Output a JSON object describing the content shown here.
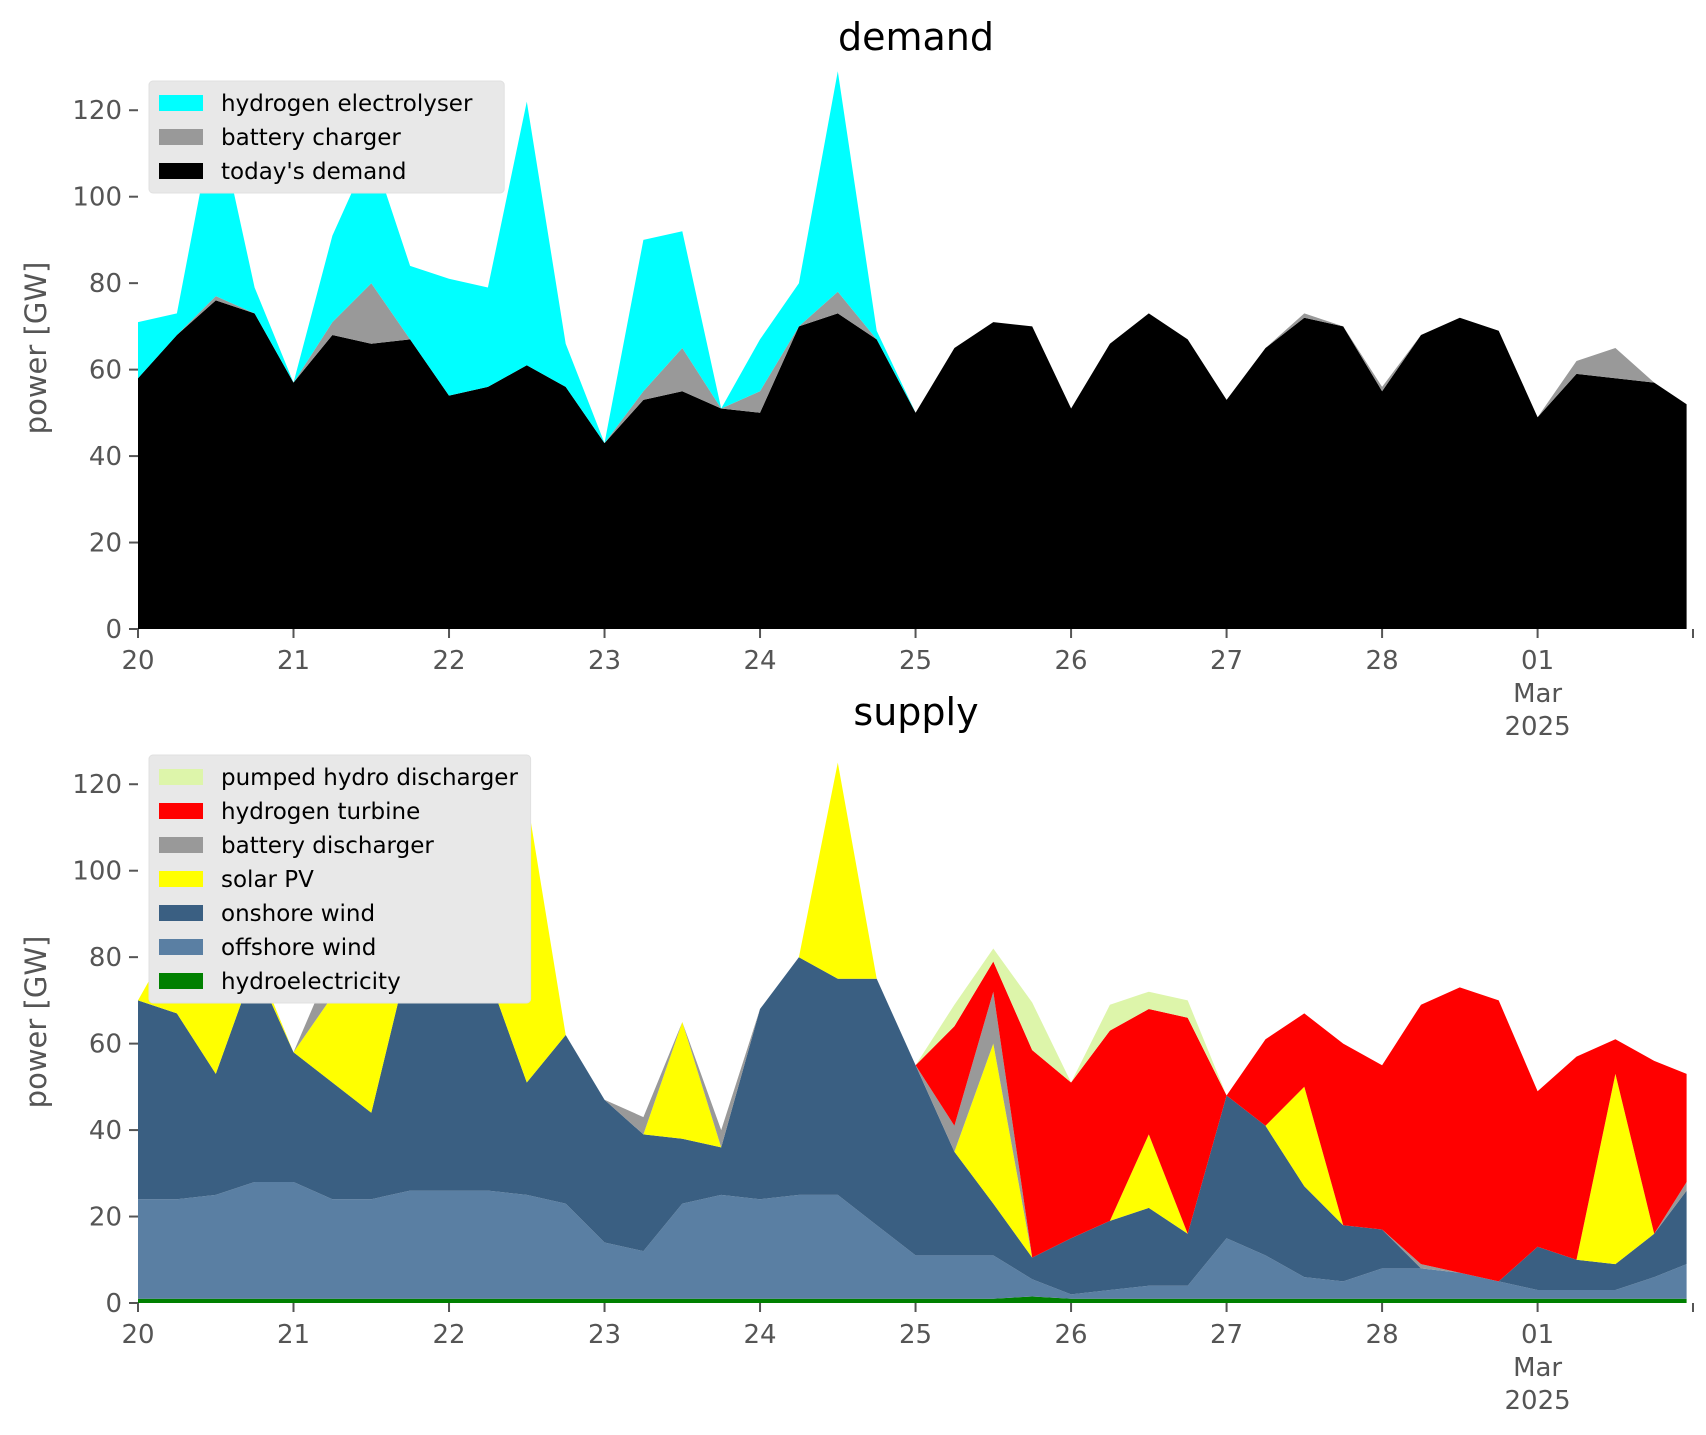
{
  "chart_data": [
    {
      "type": "area",
      "stacked": true,
      "title": "demand",
      "ylabel": "power [GW]",
      "ylim": [
        0,
        130
      ],
      "yticks": [
        0,
        20,
        40,
        60,
        80,
        100,
        120
      ],
      "xlim": [
        "2025-02-20T00:00",
        "2025-03-01T23:59"
      ],
      "xticks": [
        {
          "date": "2025-02-20",
          "label": "20"
        },
        {
          "date": "2025-02-21",
          "label": "21"
        },
        {
          "date": "2025-02-22",
          "label": "22"
        },
        {
          "date": "2025-02-23",
          "label": "23"
        },
        {
          "date": "2025-02-24",
          "label": "24"
        },
        {
          "date": "2025-02-25",
          "label": "25"
        },
        {
          "date": "2025-02-26",
          "label": "26"
        },
        {
          "date": "2025-02-27",
          "label": "27"
        },
        {
          "date": "2025-02-28",
          "label": "28"
        },
        {
          "date": "2025-03-01",
          "label": "01",
          "sub1": "Mar",
          "sub2": "2025"
        }
      ],
      "grid": false,
      "legend_position": "top-left",
      "x": [
        "2025-02-20T00:00",
        "2025-02-20T06:00",
        "2025-02-20T12:00",
        "2025-02-20T18:00",
        "2025-02-21T00:00",
        "2025-02-21T06:00",
        "2025-02-21T12:00",
        "2025-02-21T18:00",
        "2025-02-22T00:00",
        "2025-02-22T06:00",
        "2025-02-22T12:00",
        "2025-02-22T18:00",
        "2025-02-23T00:00",
        "2025-02-23T06:00",
        "2025-02-23T12:00",
        "2025-02-23T18:00",
        "2025-02-24T00:00",
        "2025-02-24T06:00",
        "2025-02-24T12:00",
        "2025-02-24T18:00",
        "2025-02-25T00:00",
        "2025-02-25T06:00",
        "2025-02-25T12:00",
        "2025-02-25T18:00",
        "2025-02-26T00:00",
        "2025-02-26T06:00",
        "2025-02-26T12:00",
        "2025-02-26T18:00",
        "2025-02-27T00:00",
        "2025-02-27T06:00",
        "2025-02-27T12:00",
        "2025-02-27T18:00",
        "2025-02-28T00:00",
        "2025-02-28T06:00",
        "2025-02-28T12:00",
        "2025-02-28T18:00",
        "2025-03-01T00:00",
        "2025-03-01T06:00",
        "2025-03-01T12:00",
        "2025-03-01T18:00",
        "2025-03-01T23:00"
      ],
      "series": [
        {
          "name": "today's demand",
          "color": "#000000",
          "values": [
            58,
            68,
            76,
            73,
            57,
            68,
            66,
            67,
            54,
            56,
            61,
            56,
            43,
            53,
            55,
            51,
            50,
            70,
            73,
            67,
            50,
            65,
            71,
            70,
            51,
            66,
            73,
            67,
            53,
            65,
            72,
            70,
            55,
            68,
            72,
            69,
            49,
            59,
            58,
            57,
            52
          ]
        },
        {
          "name": "battery charger",
          "color": "#999999",
          "values": [
            0,
            0,
            1,
            0,
            0,
            3,
            14,
            0,
            0,
            0,
            0,
            0,
            0,
            2,
            10,
            0,
            5,
            0,
            5,
            0,
            0,
            0,
            0,
            0,
            0,
            0,
            0,
            0,
            0,
            0,
            1,
            0,
            1,
            0,
            0,
            0,
            0,
            3,
            7,
            0,
            0
          ]
        },
        {
          "name": "hydrogen electrolyser",
          "color": "#00ffff",
          "values": [
            13,
            5,
            43,
            6,
            0,
            20,
            31,
            17,
            27,
            23,
            61,
            10,
            0,
            35,
            27,
            0,
            12,
            10,
            51,
            2,
            0,
            0,
            0,
            0,
            0,
            0,
            0,
            0,
            0,
            0,
            0,
            0,
            0,
            0,
            0,
            0,
            0,
            0,
            0,
            0,
            0
          ]
        }
      ]
    },
    {
      "type": "area",
      "stacked": true,
      "title": "supply",
      "ylabel": "power [GW]",
      "ylim": [
        0,
        130
      ],
      "yticks": [
        0,
        20,
        40,
        60,
        80,
        100,
        120
      ],
      "xlim": [
        "2025-02-20T00:00",
        "2025-03-01T23:59"
      ],
      "xticks": [
        {
          "date": "2025-02-20",
          "label": "20"
        },
        {
          "date": "2025-02-21",
          "label": "21"
        },
        {
          "date": "2025-02-22",
          "label": "22"
        },
        {
          "date": "2025-02-23",
          "label": "23"
        },
        {
          "date": "2025-02-24",
          "label": "24"
        },
        {
          "date": "2025-02-25",
          "label": "25"
        },
        {
          "date": "2025-02-26",
          "label": "26"
        },
        {
          "date": "2025-02-27",
          "label": "27"
        },
        {
          "date": "2025-02-28",
          "label": "28"
        },
        {
          "date": "2025-03-01",
          "label": "01",
          "sub1": "Mar",
          "sub2": "2025"
        }
      ],
      "grid": false,
      "legend_position": "top-left",
      "x": [
        "2025-02-20T00:00",
        "2025-02-20T06:00",
        "2025-02-20T12:00",
        "2025-02-20T18:00",
        "2025-02-21T00:00",
        "2025-02-21T06:00",
        "2025-02-21T12:00",
        "2025-02-21T18:00",
        "2025-02-22T00:00",
        "2025-02-22T06:00",
        "2025-02-22T12:00",
        "2025-02-22T18:00",
        "2025-02-23T00:00",
        "2025-02-23T06:00",
        "2025-02-23T12:00",
        "2025-02-23T18:00",
        "2025-02-24T00:00",
        "2025-02-24T06:00",
        "2025-02-24T12:00",
        "2025-02-24T18:00",
        "2025-02-25T00:00",
        "2025-02-25T06:00",
        "2025-02-25T12:00",
        "2025-02-25T18:00",
        "2025-02-26T00:00",
        "2025-02-26T06:00",
        "2025-02-26T12:00",
        "2025-02-26T18:00",
        "2025-02-27T00:00",
        "2025-02-27T06:00",
        "2025-02-27T12:00",
        "2025-02-27T18:00",
        "2025-02-28T00:00",
        "2025-02-28T06:00",
        "2025-02-28T12:00",
        "2025-02-28T18:00",
        "2025-03-01T00:00",
        "2025-03-01T06:00",
        "2025-03-01T12:00",
        "2025-03-01T18:00",
        "2025-03-01T23:00"
      ],
      "series": [
        {
          "name": "hydroelectricity",
          "color": "#008000",
          "values": [
            1,
            1,
            1,
            1,
            1,
            1,
            1,
            1,
            1,
            1,
            1,
            1,
            1,
            1,
            1,
            1,
            1,
            1,
            1,
            1,
            1,
            1,
            1,
            1.5,
            1,
            1,
            1,
            1,
            1,
            1,
            1,
            1,
            1,
            1,
            1,
            1,
            1,
            1,
            1,
            1,
            1
          ]
        },
        {
          "name": "offshore wind",
          "color": "#5a7fa3",
          "values": [
            23,
            23,
            24,
            27,
            27,
            23,
            23,
            25,
            25,
            25,
            24,
            22,
            13,
            11,
            22,
            24,
            23,
            24,
            24,
            17,
            10,
            10,
            10,
            4,
            1,
            2,
            3,
            3,
            14,
            10,
            5,
            4,
            7,
            7,
            6,
            4,
            2,
            2,
            2,
            5,
            8
          ]
        },
        {
          "name": "onshore wind",
          "color": "#3a5f82",
          "values": [
            46,
            43,
            28,
            50,
            30,
            27,
            20,
            55,
            55,
            50,
            26,
            39,
            33,
            27,
            15,
            11,
            44,
            55,
            50,
            57,
            44,
            24,
            12,
            5,
            13,
            16,
            18,
            12,
            33,
            30,
            21,
            13,
            9,
            0,
            0,
            0,
            10,
            7,
            6,
            10,
            17
          ]
        },
        {
          "name": "solar PV",
          "color": "#ffff00",
          "values": [
            0,
            19,
            64,
            2,
            0,
            20,
            56,
            0,
            0,
            35,
            66,
            0,
            0,
            0,
            27,
            0,
            0,
            0,
            50,
            0,
            0,
            0,
            37,
            0,
            0,
            0,
            17,
            0,
            0,
            0,
            23,
            0,
            0,
            0,
            0,
            0,
            0,
            0,
            44,
            0,
            0
          ]
        },
        {
          "name": "battery discharger",
          "color": "#999999",
          "values": [
            0,
            0,
            0,
            0,
            0,
            8,
            0,
            0,
            0,
            0,
            0,
            0,
            0,
            4,
            0,
            4,
            0,
            0,
            0,
            0,
            0,
            6,
            12,
            0,
            0,
            0,
            0,
            0,
            0,
            0,
            0,
            0,
            0,
            1,
            0,
            0,
            0,
            0,
            0,
            0,
            2
          ]
        },
        {
          "name": "hydrogen turbine",
          "color": "#ff0000",
          "values": [
            0,
            0,
            0,
            0,
            0,
            0,
            0,
            0,
            0,
            0,
            0,
            0,
            0,
            0,
            0,
            0,
            0,
            0,
            0,
            0,
            0,
            23,
            7,
            48,
            36,
            44,
            29,
            50,
            0,
            20,
            17,
            42,
            38,
            60,
            66,
            65,
            36,
            47,
            8,
            40,
            25
          ]
        },
        {
          "name": "pumped hydro discharger",
          "color": "#ddf5aa",
          "values": [
            0,
            0,
            0,
            0,
            0,
            0,
            0,
            0,
            0,
            0,
            0,
            0,
            0,
            0,
            0,
            0,
            0,
            0,
            0,
            0,
            0,
            5,
            3,
            11,
            0,
            6,
            4,
            4,
            0,
            0,
            0,
            0,
            0,
            0,
            0,
            0,
            0,
            0,
            0,
            0,
            0
          ]
        }
      ]
    }
  ]
}
